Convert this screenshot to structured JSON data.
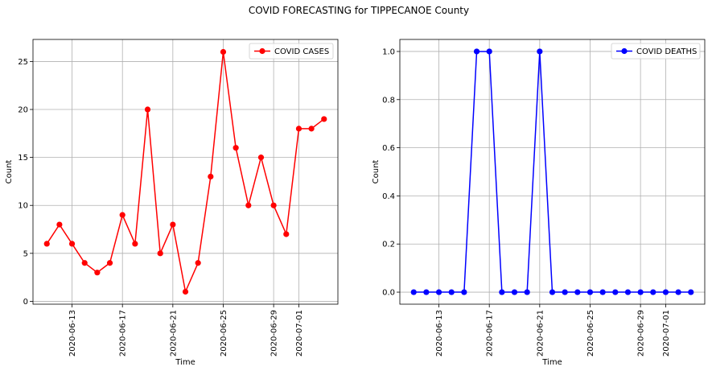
{
  "figure": {
    "title": "COVID FORECASTING for TIPPECANOE County"
  },
  "chart_data": [
    {
      "type": "line",
      "title": "",
      "xlabel": "Time",
      "ylabel": "Count",
      "x": [
        "2020-06-11",
        "2020-06-12",
        "2020-06-13",
        "2020-06-14",
        "2020-06-15",
        "2020-06-16",
        "2020-06-17",
        "2020-06-18",
        "2020-06-19",
        "2020-06-20",
        "2020-06-21",
        "2020-06-22",
        "2020-06-23",
        "2020-06-24",
        "2020-06-25",
        "2020-06-26",
        "2020-06-27",
        "2020-06-28",
        "2020-06-29",
        "2020-06-30",
        "2020-07-01",
        "2020-07-02",
        "2020-07-03"
      ],
      "xticks": [
        "2020-06-13",
        "2020-06-17",
        "2020-06-21",
        "2020-06-25",
        "2020-06-29",
        "2020-07-01"
      ],
      "yticks": [
        0,
        5,
        10,
        15,
        20,
        25
      ],
      "ylim": [
        -0.3,
        27.3
      ],
      "grid": true,
      "legend_position": "top-right",
      "color": "#ff0000",
      "series": [
        {
          "name": "COVID CASES",
          "values": [
            6,
            8,
            6,
            4,
            3,
            4,
            9,
            6,
            20,
            5,
            8,
            1,
            4,
            13,
            26,
            16,
            10,
            15,
            10,
            7,
            18,
            18,
            19
          ]
        }
      ]
    },
    {
      "type": "line",
      "title": "",
      "xlabel": "Time",
      "ylabel": "Count",
      "x": [
        "2020-06-11",
        "2020-06-12",
        "2020-06-13",
        "2020-06-14",
        "2020-06-15",
        "2020-06-16",
        "2020-06-17",
        "2020-06-18",
        "2020-06-19",
        "2020-06-20",
        "2020-06-21",
        "2020-06-22",
        "2020-06-23",
        "2020-06-24",
        "2020-06-25",
        "2020-06-26",
        "2020-06-27",
        "2020-06-28",
        "2020-06-29",
        "2020-06-30",
        "2020-07-01",
        "2020-07-02",
        "2020-07-03"
      ],
      "xticks": [
        "2020-06-13",
        "2020-06-17",
        "2020-06-21",
        "2020-06-25",
        "2020-06-29",
        "2020-07-01"
      ],
      "yticks": [
        0.0,
        0.2,
        0.4,
        0.6,
        0.8,
        1.0
      ],
      "yticklabels": [
        "0.0",
        "0.2",
        "0.4",
        "0.6",
        "0.8",
        "1.0"
      ],
      "ylim": [
        -0.05,
        1.05
      ],
      "grid": true,
      "legend_position": "top-right",
      "color": "#0000ff",
      "series": [
        {
          "name": "COVID DEATHS",
          "values": [
            0,
            0,
            0,
            0,
            0,
            1,
            1,
            0,
            0,
            0,
            1,
            0,
            0,
            0,
            0,
            0,
            0,
            0,
            0,
            0,
            0,
            0,
            0
          ]
        }
      ]
    }
  ]
}
